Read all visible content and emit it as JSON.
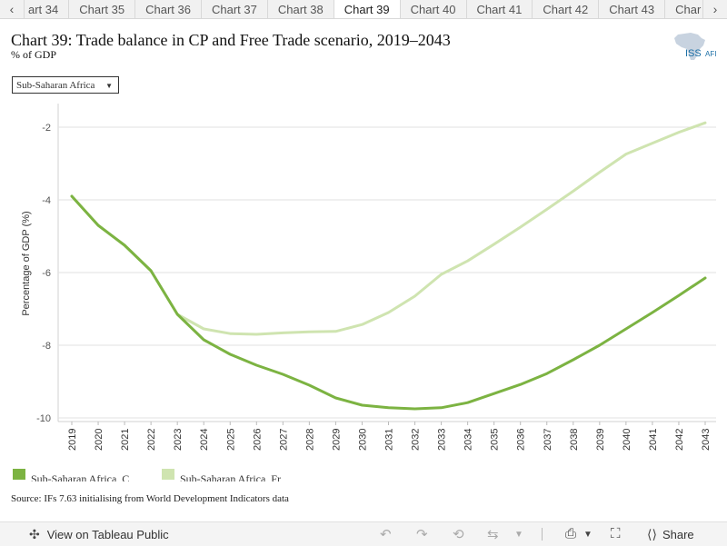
{
  "tabs": {
    "left_arrow": "‹",
    "right_arrow": "›",
    "items": [
      "art 34",
      "Chart 35",
      "Chart 36",
      "Chart 37",
      "Chart 38",
      "Chart 39",
      "Chart 40",
      "Chart 41",
      "Chart 42",
      "Chart 43",
      "Char"
    ],
    "active_index": 5
  },
  "header": {
    "title": "Chart 39: Trade balance in CP and Free Trade scenario, 2019–2043",
    "subtitle": "% of GDP",
    "logo_text": "ISS",
    "logo_suffix": "AFI"
  },
  "filter": {
    "selected": "Sub-Saharan Africa"
  },
  "chart_data": {
    "type": "line",
    "ylabel": "Percentage of GDP (%)",
    "xlabel": "",
    "ylim": [
      -10,
      -2
    ],
    "yticks": [
      -2,
      -4,
      -6,
      -8,
      -10
    ],
    "grid": true,
    "x": [
      2019,
      2020,
      2021,
      2022,
      2023,
      2024,
      2025,
      2026,
      2027,
      2028,
      2029,
      2030,
      2031,
      2032,
      2033,
      2034,
      2035,
      2036,
      2037,
      2038,
      2039,
      2040,
      2041,
      2042,
      2043
    ],
    "series": [
      {
        "name": "Sub-Saharan Africa, C",
        "color": "#7cb342",
        "values": [
          -3.9,
          -4.7,
          -5.25,
          -5.95,
          -7.15,
          -7.85,
          -8.25,
          -8.55,
          -8.8,
          -9.1,
          -9.45,
          -9.65,
          -9.72,
          -9.75,
          -9.72,
          -9.58,
          -9.33,
          -9.08,
          -8.78,
          -8.4,
          -8.0,
          -7.55,
          -7.1,
          -6.63,
          -6.15
        ]
      },
      {
        "name": "Sub-Saharan Africa, Fr",
        "color": "#cfe4b0",
        "values": [
          -3.9,
          -4.7,
          -5.25,
          -5.95,
          -7.15,
          -7.55,
          -7.68,
          -7.7,
          -7.66,
          -7.63,
          -7.62,
          -7.43,
          -7.1,
          -6.65,
          -6.05,
          -5.68,
          -5.22,
          -4.75,
          -4.26,
          -3.76,
          -3.24,
          -2.74,
          -2.44,
          -2.14,
          -1.88
        ]
      }
    ],
    "legend": "bottom-left"
  },
  "source": "Source: IFs 7.63 initialising from World Development Indicators data",
  "toolbar": {
    "view_label": "View on Tableau Public",
    "share_label": "Share"
  }
}
